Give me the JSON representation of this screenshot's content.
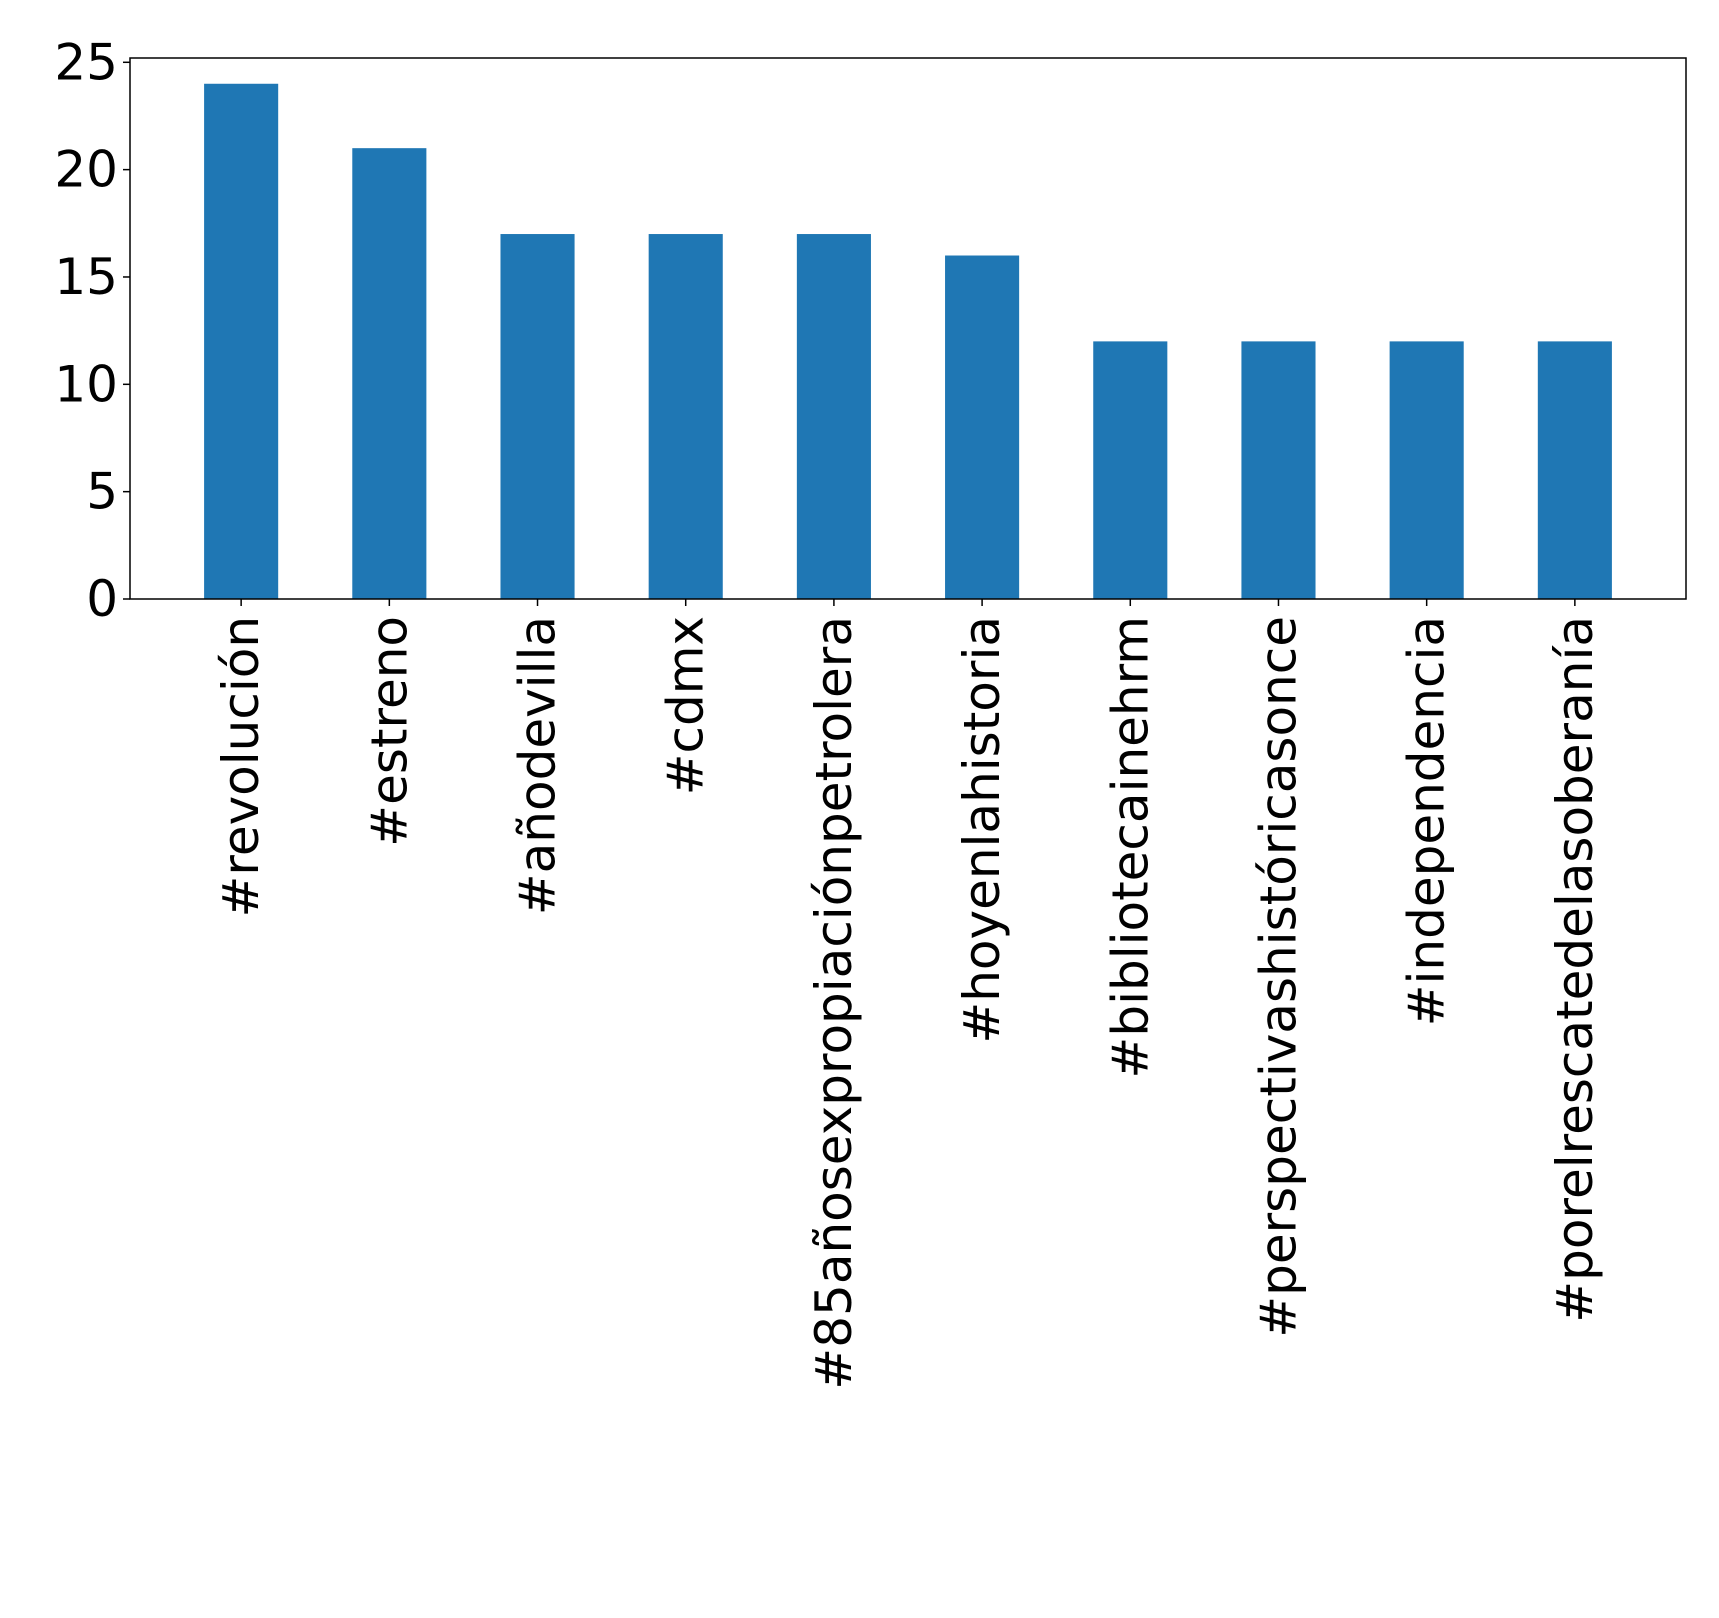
{
  "chart_data": {
    "type": "bar",
    "title": "",
    "xlabel": "",
    "ylabel": "",
    "categories": [
      "#revolución",
      "#estreno",
      "#añodevilla",
      "#cdmx",
      "#85añosexpropiaciónpetrolera",
      "#hoyenlahistoria",
      "#bibliotecainehrm",
      "#perspectivashistóricasonce",
      "#independencia",
      "#porelrescatedelasoberanía"
    ],
    "values": [
      24,
      21,
      17,
      17,
      17,
      16,
      12,
      12,
      12,
      12
    ],
    "ylim": [
      0,
      25.2
    ],
    "yticks": [
      0,
      5,
      10,
      15,
      20,
      25
    ],
    "grid": false,
    "legend": "none",
    "bar_color": "#1f77b4"
  }
}
